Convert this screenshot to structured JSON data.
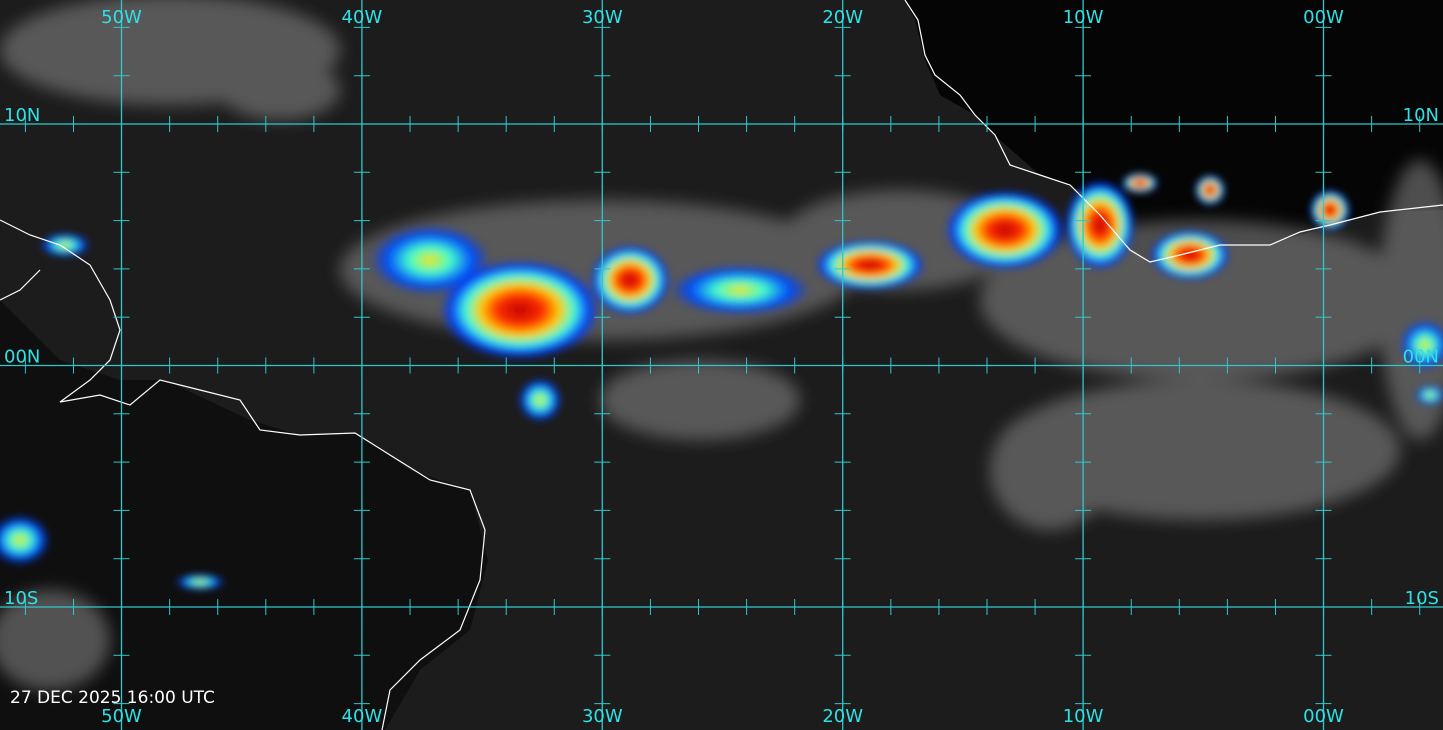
{
  "map": {
    "lon_labels_top": [
      "50W",
      "40W",
      "30W",
      "20W",
      "10W",
      "00W"
    ],
    "lon_labels_bottom": [
      "50W",
      "40W",
      "30W",
      "20W",
      "10W",
      "00W"
    ],
    "lat_labels_left": [
      "10N",
      "00N",
      "10S"
    ],
    "lat_labels_right": [
      "10N",
      "00N",
      "10S"
    ],
    "timestamp": "27 DEC 2025 16:00 UTC"
  }
}
